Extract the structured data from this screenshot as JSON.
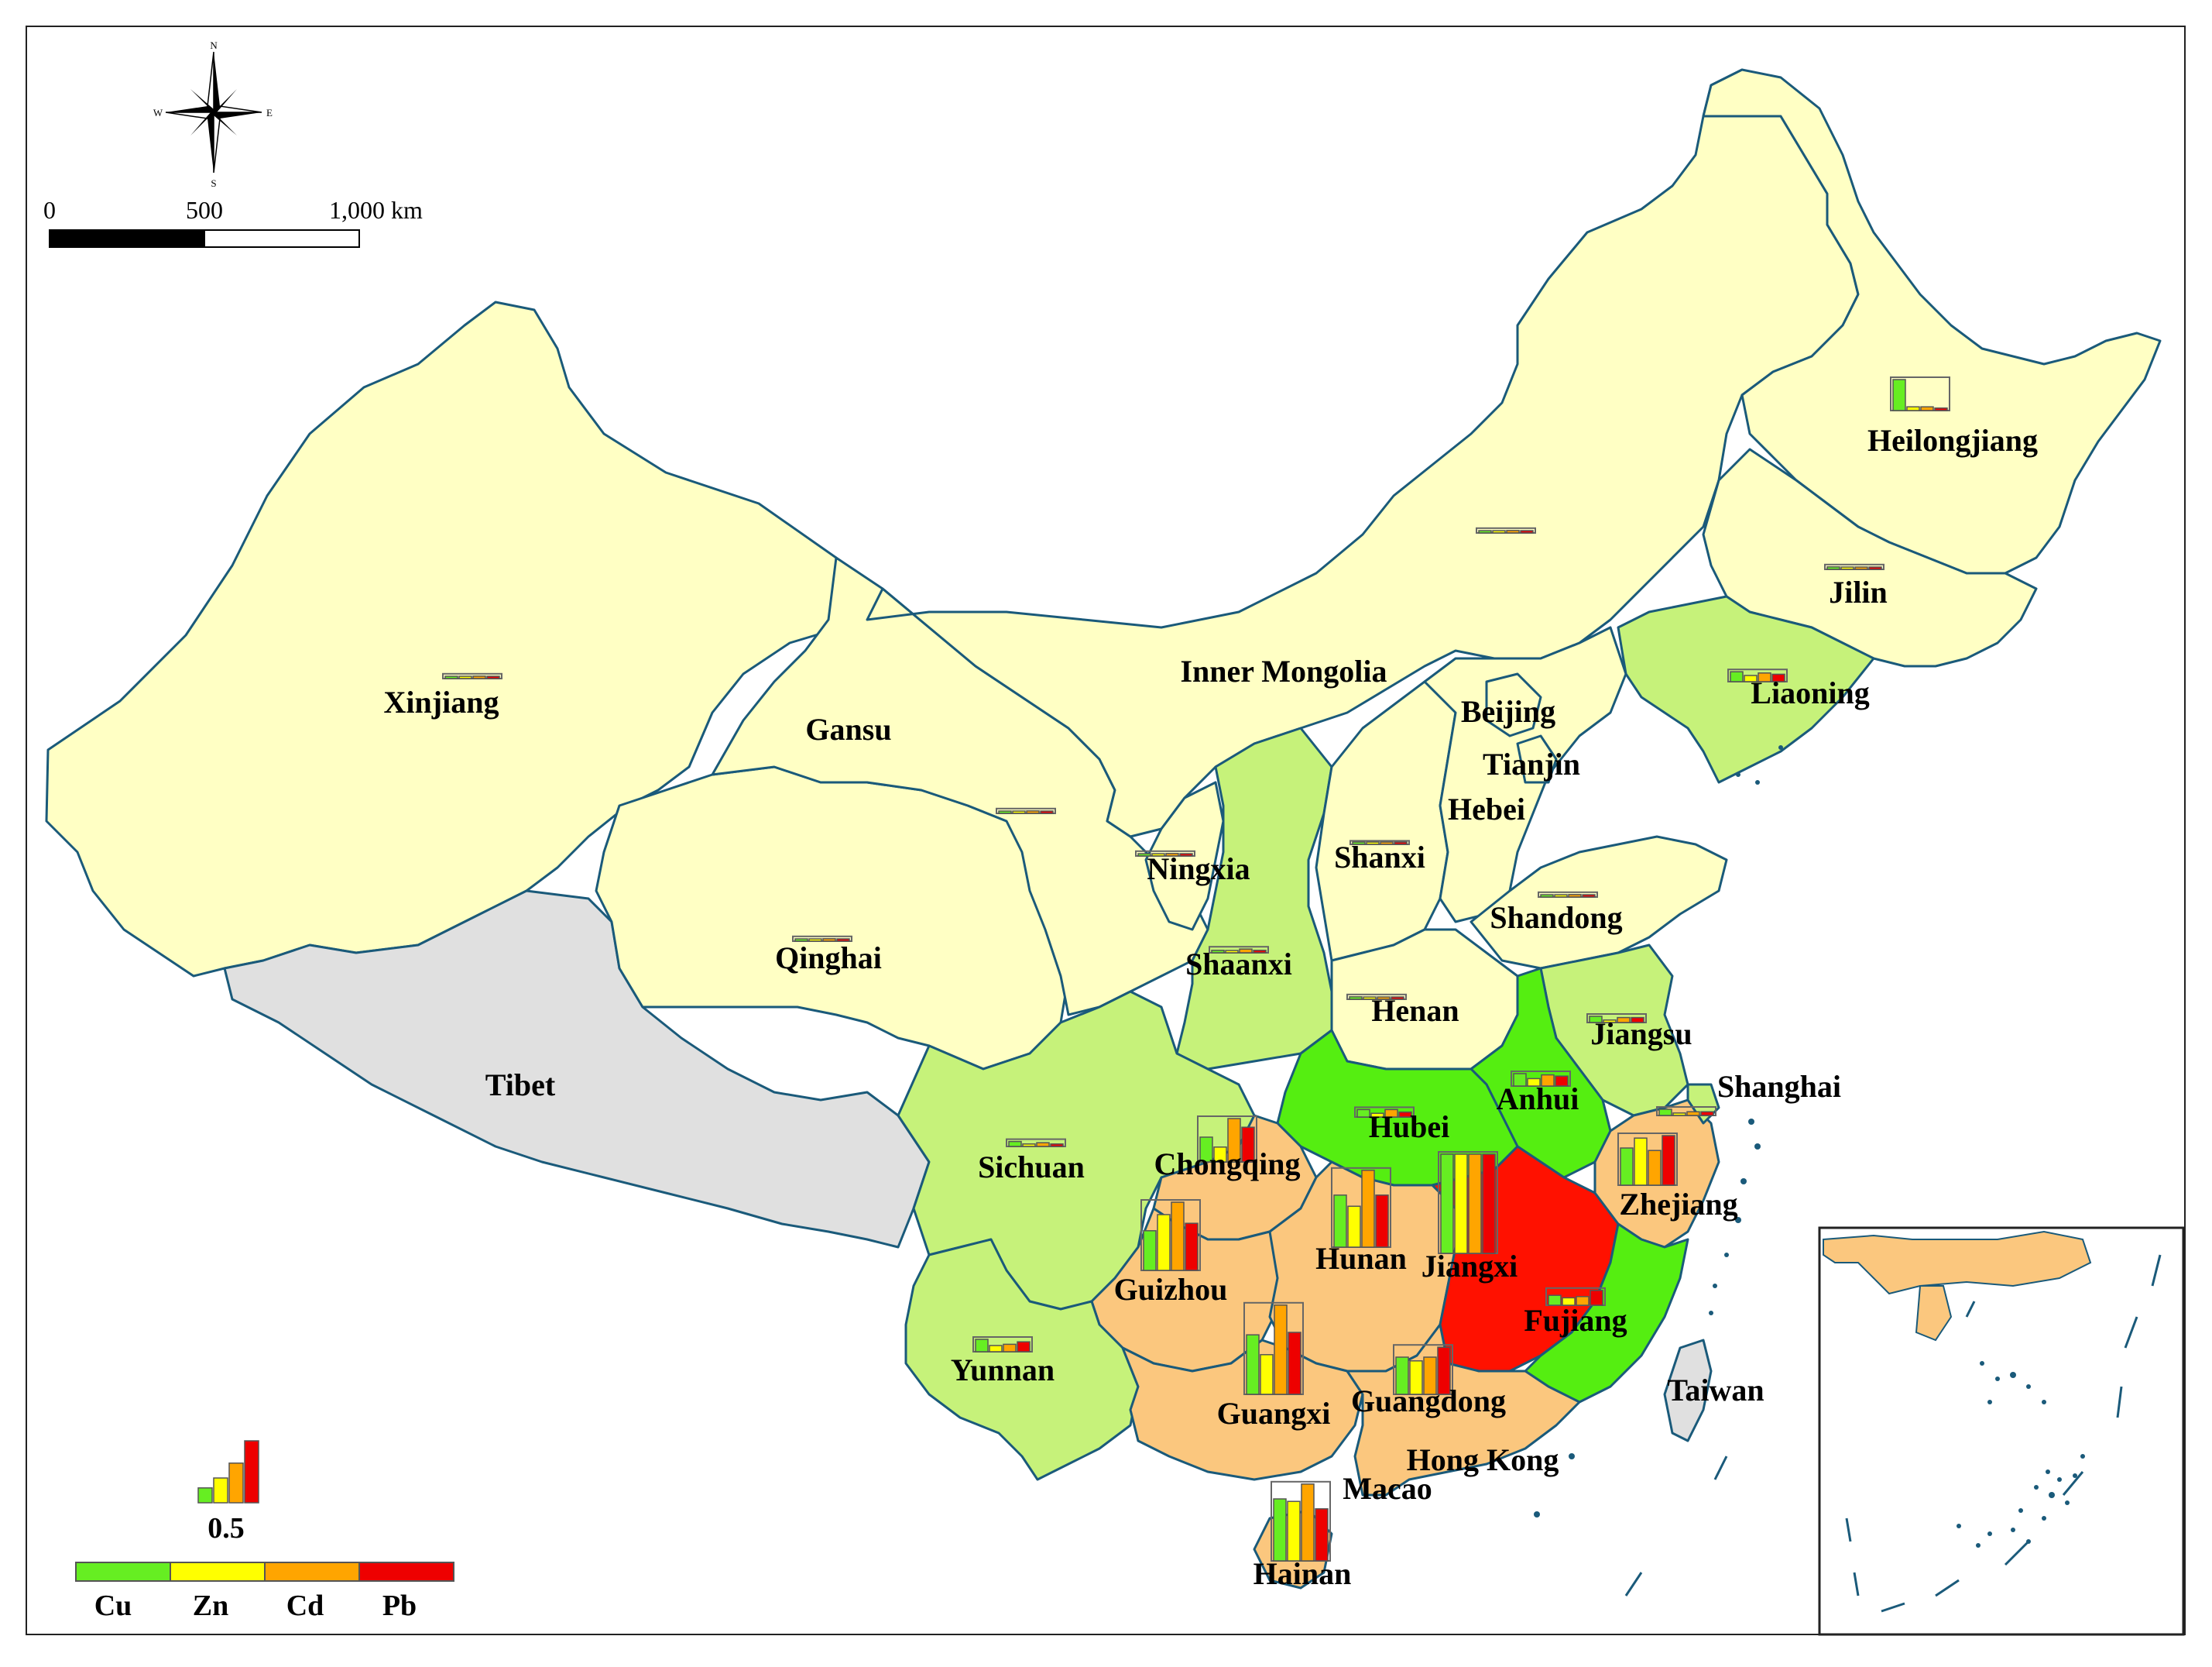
{
  "map": {
    "scale_bar": {
      "ticks": [
        "0",
        "500",
        "1,000 km"
      ]
    },
    "compass": {
      "north": "N",
      "south": "S",
      "east": "E",
      "west": "W"
    },
    "colors": {
      "Cu": "#66ee22",
      "Zn": "#ffff00",
      "Cd": "#ffa500",
      "Pb": "#ee0000",
      "class_pale": "#ffffc4",
      "class_lightgreen": "#c6f27a",
      "class_green": "#55ee11",
      "class_orange": "#fbc77e",
      "class_red": "#ff1100",
      "class_nodata": "#e0e0e0"
    },
    "regions": [
      {
        "name": "Xinjiang",
        "class": "pale",
        "values": [
          0.01,
          0.01,
          0.02,
          0.01
        ]
      },
      {
        "name": "Tibet",
        "class": "nodata",
        "values": []
      },
      {
        "name": "Qinghai",
        "class": "pale",
        "values": [
          0.01,
          0.01,
          0.02,
          0.01
        ]
      },
      {
        "name": "Gansu",
        "class": "pale",
        "values": [
          0.01,
          0.01,
          0.02,
          0.01
        ]
      },
      {
        "name": "Inner Mongolia",
        "class": "pale",
        "values": [
          0.01,
          0.01,
          0.02,
          0.01
        ]
      },
      {
        "name": "Ningxia",
        "class": "pale",
        "values": [
          0.01,
          0.01,
          0.02,
          0.01
        ]
      },
      {
        "name": "Shaanxi",
        "class": "lightgreen",
        "values": [
          0.02,
          0.01,
          0.03,
          0.02
        ]
      },
      {
        "name": "Shanxi",
        "class": "pale",
        "values": [
          0.01,
          0.01,
          0.01,
          0.01
        ]
      },
      {
        "name": "Hebei",
        "class": "pale",
        "values": []
      },
      {
        "name": "Beijing",
        "class": "pale",
        "values": []
      },
      {
        "name": "Tianjin",
        "class": "pale",
        "values": []
      },
      {
        "name": "Shandong",
        "class": "pale",
        "values": [
          0.01,
          0.01,
          0.02,
          0.01
        ]
      },
      {
        "name": "Henan",
        "class": "pale",
        "values": [
          0.02,
          0.01,
          0.01,
          0.01
        ]
      },
      {
        "name": "Liaoning",
        "class": "lightgreen",
        "values": [
          0.08,
          0.05,
          0.07,
          0.06
        ]
      },
      {
        "name": "Jilin",
        "class": "pale",
        "values": [
          0.02,
          0.01,
          0.01,
          0.01
        ]
      },
      {
        "name": "Heilongjiang",
        "class": "pale",
        "values": [
          0.25,
          0.03,
          0.03,
          0.02
        ]
      },
      {
        "name": "Sichuan",
        "class": "lightgreen",
        "values": [
          0.04,
          0.02,
          0.03,
          0.02
        ]
      },
      {
        "name": "Chongqing",
        "class": "orange",
        "values": [
          0.2,
          0.12,
          0.35,
          0.28
        ]
      },
      {
        "name": "Hubei",
        "class": "green",
        "values": [
          0.06,
          0.03,
          0.06,
          0.04
        ]
      },
      {
        "name": "Anhui",
        "class": "green",
        "values": [
          0.1,
          0.06,
          0.09,
          0.08
        ]
      },
      {
        "name": "Jiangsu",
        "class": "lightgreen",
        "values": [
          0.05,
          0.02,
          0.04,
          0.04
        ]
      },
      {
        "name": "Shanghai",
        "class": "lightgreen",
        "values": [
          0.05,
          0.02,
          0.03,
          0.03
        ]
      },
      {
        "name": "Zhejiang",
        "class": "orange",
        "values": [
          0.3,
          0.38,
          0.28,
          0.4
        ]
      },
      {
        "name": "Guizhou",
        "class": "orange",
        "values": [
          0.32,
          0.45,
          0.55,
          0.38
        ]
      },
      {
        "name": "Hunan",
        "class": "orange",
        "values": [
          0.42,
          0.33,
          0.62,
          0.42
        ]
      },
      {
        "name": "Jiangxi",
        "class": "red",
        "values": [
          0.8,
          0.8,
          0.8,
          0.8
        ]
      },
      {
        "name": "Fujiang",
        "class": "green",
        "values": [
          0.08,
          0.06,
          0.07,
          0.12
        ]
      },
      {
        "name": "Yunnan",
        "class": "lightgreen",
        "values": [
          0.1,
          0.05,
          0.06,
          0.08
        ]
      },
      {
        "name": "Guangxi",
        "class": "orange",
        "values": [
          0.48,
          0.32,
          0.72,
          0.5
        ]
      },
      {
        "name": "Guangdong",
        "class": "orange",
        "values": [
          0.3,
          0.27,
          0.3,
          0.38
        ]
      },
      {
        "name": "Hainan",
        "class": "orange",
        "values": [
          0.5,
          0.48,
          0.62,
          0.42
        ]
      },
      {
        "name": "Taiwan",
        "class": "nodata",
        "values": []
      },
      {
        "name": "Hong Kong",
        "class": "pale",
        "values": []
      },
      {
        "name": "Macao",
        "class": "pale",
        "values": []
      }
    ],
    "legend": {
      "reference_value": "0.5",
      "metals": [
        "Cu",
        "Zn",
        "Cd",
        "Pb"
      ]
    }
  }
}
